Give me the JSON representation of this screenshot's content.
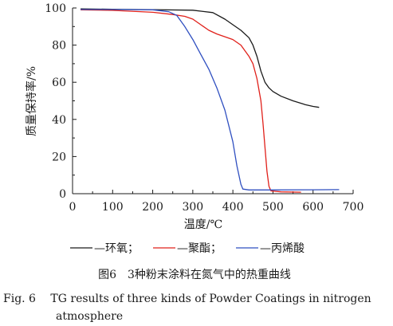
{
  "chart_data": {
    "type": "line",
    "xlabel": "温度/℃",
    "ylabel": "质量保持率/%",
    "xlim": [
      0,
      700
    ],
    "ylim": [
      0,
      100
    ],
    "xticks": [
      0,
      100,
      200,
      300,
      400,
      500,
      600,
      700
    ],
    "yticks": [
      0,
      20,
      40,
      60,
      80,
      100
    ],
    "grid": false,
    "legend_position": "bottom",
    "series": [
      {
        "name": "环氧",
        "color": "#1a1a1a",
        "points": [
          [
            20,
            99.5
          ],
          [
            100,
            99.3
          ],
          [
            200,
            99.1
          ],
          [
            300,
            98.8
          ],
          [
            350,
            97.5
          ],
          [
            380,
            94
          ],
          [
            400,
            91
          ],
          [
            420,
            88
          ],
          [
            440,
            84
          ],
          [
            450,
            80
          ],
          [
            460,
            74
          ],
          [
            470,
            66
          ],
          [
            480,
            60
          ],
          [
            490,
            57
          ],
          [
            500,
            55
          ],
          [
            520,
            52.5
          ],
          [
            550,
            50
          ],
          [
            580,
            48
          ],
          [
            600,
            47
          ],
          [
            615,
            46.5
          ]
        ]
      },
      {
        "name": "聚酯",
        "color": "#e0201a",
        "points": [
          [
            20,
            99
          ],
          [
            100,
            98.7
          ],
          [
            200,
            97.7
          ],
          [
            250,
            96.5
          ],
          [
            280,
            95.5
          ],
          [
            300,
            94
          ],
          [
            320,
            91
          ],
          [
            340,
            88
          ],
          [
            360,
            86
          ],
          [
            380,
            84.5
          ],
          [
            400,
            83
          ],
          [
            420,
            80
          ],
          [
            440,
            74
          ],
          [
            450,
            70
          ],
          [
            460,
            62
          ],
          [
            470,
            50
          ],
          [
            475,
            38
          ],
          [
            480,
            25
          ],
          [
            485,
            12
          ],
          [
            490,
            4
          ],
          [
            495,
            1.5
          ],
          [
            520,
            1
          ],
          [
            570,
            0.8
          ]
        ]
      },
      {
        "name": "丙烯酸",
        "color": "#2f4fc0",
        "points": [
          [
            20,
            99.2
          ],
          [
            100,
            99.2
          ],
          [
            200,
            99
          ],
          [
            240,
            98
          ],
          [
            260,
            96
          ],
          [
            280,
            90
          ],
          [
            300,
            83
          ],
          [
            320,
            75
          ],
          [
            340,
            67
          ],
          [
            360,
            57
          ],
          [
            380,
            45
          ],
          [
            400,
            28
          ],
          [
            410,
            15
          ],
          [
            420,
            5
          ],
          [
            425,
            2.5
          ],
          [
            440,
            2
          ],
          [
            500,
            2
          ],
          [
            600,
            2.1
          ],
          [
            665,
            2.2
          ]
        ]
      }
    ]
  },
  "legend": {
    "items": [
      {
        "marker": "—",
        "label": "—环氧；"
      },
      {
        "marker": "—",
        "label": "—聚酯；"
      },
      {
        "marker": "—",
        "label": "—丙烯酸"
      }
    ]
  },
  "caption": {
    "cn": "图6　3种粉末涂料在氮气中的热重曲线",
    "en_line1": "Fig. 6　 TG results of three kinds of Powder Coatings in nitrogen",
    "en_line2": "atmosphere"
  }
}
